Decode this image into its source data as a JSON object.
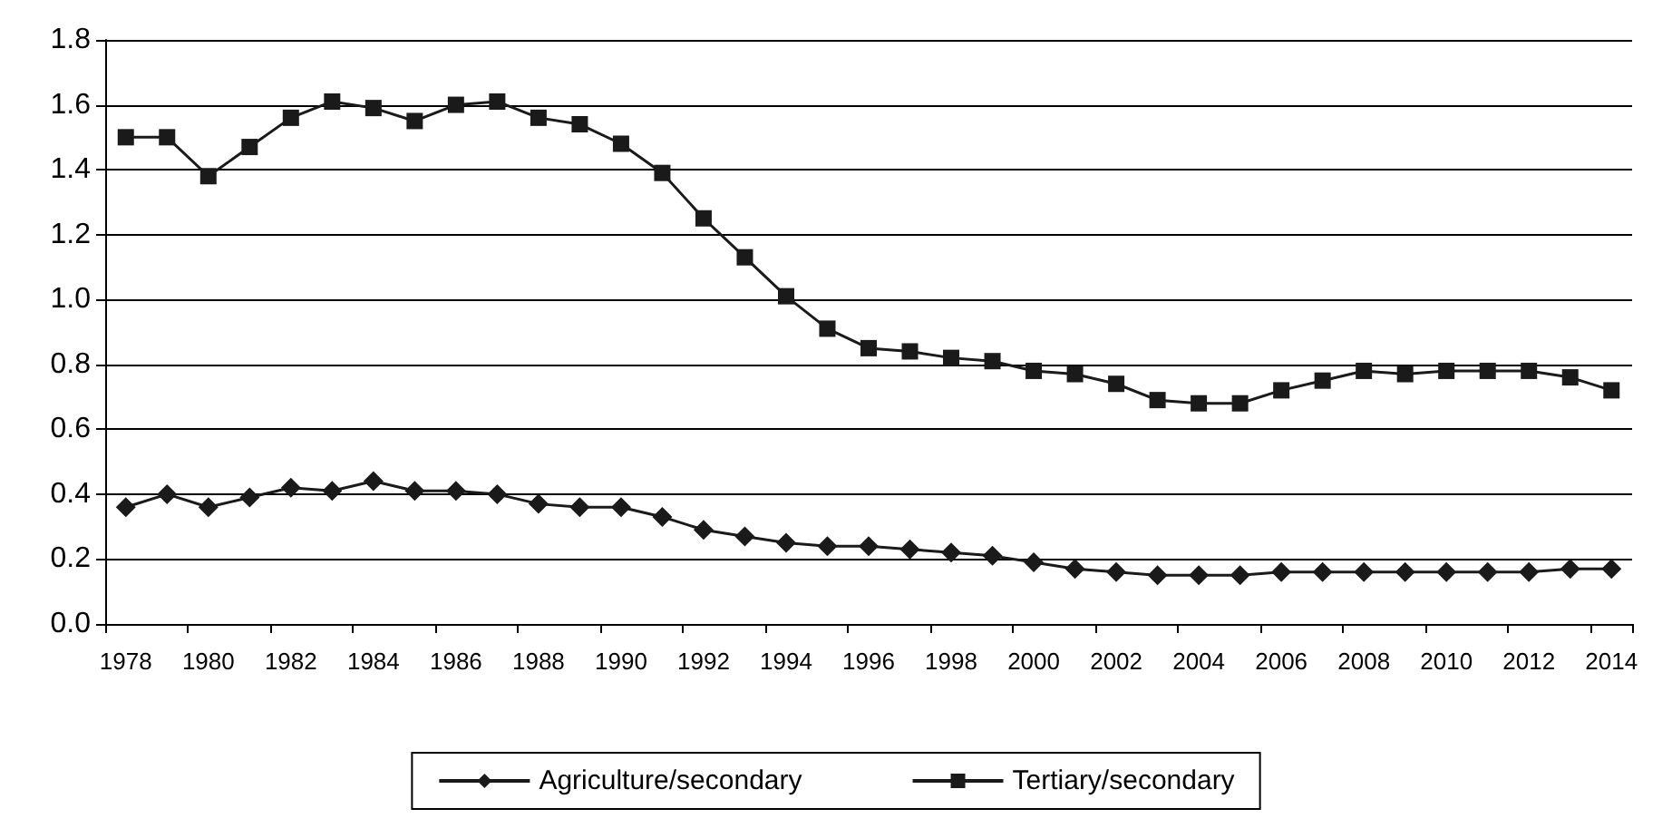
{
  "chart_data": {
    "type": "line",
    "categories": [
      "1978",
      null,
      "1980",
      null,
      "1982",
      null,
      "1984",
      null,
      "1986",
      null,
      "1988",
      null,
      "1990",
      null,
      "1992",
      null,
      "1994",
      null,
      "1996",
      null,
      "1998",
      null,
      "2000",
      null,
      "2002",
      null,
      "2004",
      null,
      "2006",
      null,
      "2008",
      null,
      "2010",
      null,
      "2012",
      null,
      "2014"
    ],
    "series": [
      {
        "name": "Agriculture/secondary",
        "color": "#1a1a1a",
        "marker": "diamond",
        "values": [
          0.36,
          0.4,
          0.36,
          0.39,
          0.42,
          0.41,
          0.44,
          0.41,
          0.41,
          0.4,
          0.37,
          0.36,
          0.36,
          0.33,
          0.29,
          0.27,
          0.25,
          0.24,
          0.24,
          0.23,
          0.22,
          0.21,
          0.19,
          0.17,
          0.16,
          0.15,
          0.15,
          0.15,
          0.16,
          0.16,
          0.16,
          0.16,
          0.16,
          0.16,
          0.16,
          0.17,
          0.17
        ]
      },
      {
        "name": "Tertiary/secondary",
        "color": "#1a1a1a",
        "marker": "square",
        "values": [
          1.5,
          1.5,
          1.38,
          1.47,
          1.56,
          1.61,
          1.59,
          1.55,
          1.6,
          1.61,
          1.56,
          1.54,
          1.48,
          1.39,
          1.25,
          1.13,
          1.01,
          0.91,
          0.85,
          0.84,
          0.82,
          0.81,
          0.78,
          0.77,
          0.74,
          0.69,
          0.68,
          0.68,
          0.72,
          0.75,
          0.78,
          0.77,
          0.78,
          0.78,
          0.78,
          0.76,
          0.72
        ]
      }
    ],
    "ylim": [
      0,
      1.8
    ],
    "yticks": [
      {
        "value": 0,
        "label": "0.0"
      },
      {
        "value": 0.2,
        "label": "0.2"
      },
      {
        "value": 0.4,
        "label": "0.4"
      },
      {
        "value": 0.6,
        "label": "0.6"
      },
      {
        "value": 0.8,
        "label": "0.8"
      },
      {
        "value": 1,
        "label": "1.0"
      },
      {
        "value": 1.2,
        "label": "1.2"
      },
      {
        "value": 1.4,
        "label": "1.4"
      },
      {
        "value": 1.6,
        "label": "1.6"
      },
      {
        "value": 1.8,
        "label": "1.8"
      }
    ],
    "grid": "y",
    "legend": "bottom",
    "line_style": "solid"
  }
}
